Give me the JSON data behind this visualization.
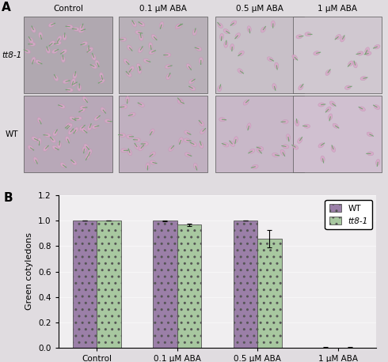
{
  "categories": [
    "Control",
    "0.1 μM ABA",
    "0.5 μM ABA",
    "1 μM ABA"
  ],
  "wt_values": [
    1.0,
    1.0,
    1.0,
    0.0
  ],
  "tt8_values": [
    1.0,
    0.97,
    0.86,
    0.0
  ],
  "wt_errors": [
    0.0,
    0.005,
    0.0,
    0.005
  ],
  "tt8_errors": [
    0.0,
    0.01,
    0.07,
    0.005
  ],
  "wt_color": "#9b7fa8",
  "tt8_color": "#a8c8a0",
  "ylabel": "Green cotyledons",
  "ylim": [
    0.0,
    1.2
  ],
  "yticks": [
    0.0,
    0.2,
    0.4,
    0.6,
    0.8,
    1.0,
    1.2
  ],
  "legend_wt": "WT",
  "legend_tt8": "tt8-1",
  "bar_width": 0.3,
  "panel_img_bg": "#b8b0b8",
  "panel_top_colors": [
    "#787878",
    "#888888",
    "#909090",
    "#989898"
  ],
  "panel_bot_colors": [
    "#808080",
    "#909090",
    "#a0a0a0",
    "#a8a8a8"
  ],
  "fig_bg": "#e0dce0",
  "chart_bg": "#f0eef0"
}
